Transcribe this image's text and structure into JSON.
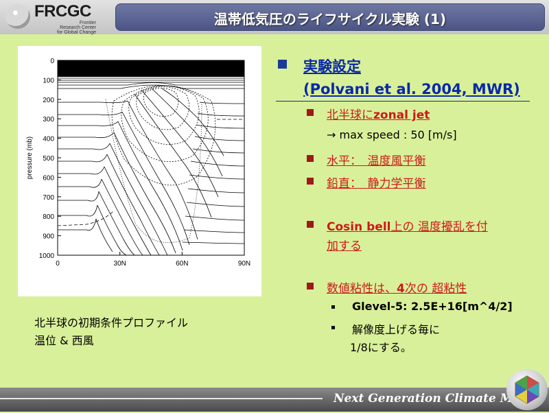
{
  "header": {
    "logo_text": "FRCGC",
    "logo_sub": [
      "Frontier",
      "Research Center",
      "for Global Change"
    ],
    "title": "温帯低気圧のライフサイクル実験 (1)"
  },
  "figure": {
    "y_axis_label": "pressure (mb)",
    "y_ticks": [
      "0",
      "100",
      "200",
      "300",
      "400",
      "500",
      "600",
      "700",
      "800",
      "900",
      "1000"
    ],
    "x_ticks": [
      "0",
      "30N",
      "60N",
      "90N"
    ]
  },
  "caption": {
    "line1": "北半球の初期条件プロファイル",
    "line2": "温位 & 西風"
  },
  "content": {
    "heading1": "実験設定",
    "heading2": "(Polvani et al. 2004, MWR)",
    "item1_prefix": "北半球に",
    "item1_bold": "zonal jet",
    "item1_sub": "→ max speed : 50 [m/s]",
    "item2": "水平：　温度風平衡",
    "item3": "鉛直：　静力学平衡",
    "item4_bold": "Cosin bell",
    "item4_rest": "上の 温度擾乱を付",
    "item4_line2": "加する",
    "item5_prefix": "数値粘性は、",
    "item5_bold": "4",
    "item5_rest": "次の 超粘性",
    "sub1": "Glevel-5: 2.5E+16[m^4/2]",
    "sub2_line1": "解像度上げる毎に",
    "sub2_line2": "1/8にする。"
  },
  "footer": {
    "text": "Next Generation Climate Model"
  },
  "colors": {
    "background": "#d9f09a",
    "title_bar": "#5a6494",
    "heading": "#0a29a8",
    "red_text": "#cc1a1a",
    "bullet": "#1a3a99"
  }
}
